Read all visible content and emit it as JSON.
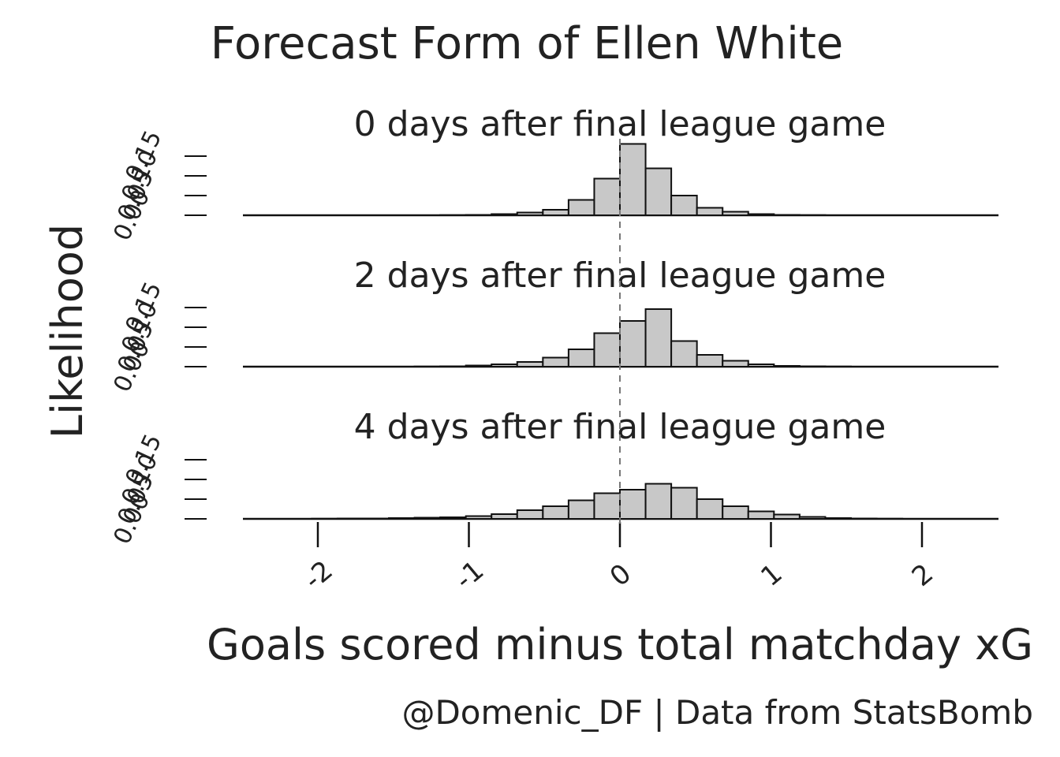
{
  "title": "Forecast Form of Ellen White",
  "caption": "@Domenic_DF  |  Data from StatsBomb",
  "chart_data": {
    "type": "bar",
    "title": "Forecast Form of Ellen White",
    "xlabel": "Goals scored minus total matchday xG",
    "ylabel": "Likelihood",
    "xlim": [
      -2.5,
      2.5
    ],
    "x_ticks": [
      -2,
      -1,
      0,
      1,
      2
    ],
    "x_tick_labels": [
      "-2",
      "-1",
      "0",
      "1",
      "2"
    ],
    "y_ticks": [
      0,
      0.05,
      0.1,
      0.15
    ],
    "y_tick_labels": [
      "0.00",
      "0.05",
      "0.10",
      "0.15"
    ],
    "ylim": [
      0,
      0.18
    ],
    "bin_width": 0.17,
    "bin_centers": [
      -2.125,
      -1.955,
      -1.785,
      -1.615,
      -1.445,
      -1.275,
      -1.105,
      -0.935,
      -0.765,
      -0.595,
      -0.425,
      -0.255,
      -0.085,
      0.085,
      0.255,
      0.425,
      0.595,
      0.765,
      0.935,
      1.105,
      1.275,
      1.445,
      1.615,
      1.785,
      1.955,
      2.125
    ],
    "reference_line_x": 0,
    "panels": [
      {
        "name": "0 days after final league game",
        "values": [
          0,
          0,
          0,
          0,
          0,
          0,
          0.0005,
          0.001,
          0.003,
          0.007,
          0.014,
          0.039,
          0.093,
          0.181,
          0.119,
          0.05,
          0.019,
          0.009,
          0.003,
          0.001,
          0.0005,
          0,
          0,
          0,
          0,
          0
        ]
      },
      {
        "name": "2 days after final league game",
        "values": [
          0,
          0,
          0,
          0,
          0,
          0.0005,
          0.001,
          0.003,
          0.006,
          0.012,
          0.023,
          0.044,
          0.085,
          0.116,
          0.146,
          0.065,
          0.03,
          0.015,
          0.006,
          0.002,
          0.001,
          0.0005,
          0,
          0,
          0,
          0
        ]
      },
      {
        "name": "4 days after final league game",
        "values": [
          0,
          0.0005,
          0.001,
          0.001,
          0.002,
          0.003,
          0.004,
          0.007,
          0.012,
          0.022,
          0.032,
          0.047,
          0.065,
          0.074,
          0.089,
          0.079,
          0.05,
          0.032,
          0.019,
          0.011,
          0.005,
          0.002,
          0.001,
          0.0005,
          0,
          0
        ]
      }
    ]
  },
  "colors": {
    "bar_fill": "#c8c8c8",
    "bar_stroke": "#111111",
    "text": "#222222",
    "reference_line": "#777777"
  }
}
